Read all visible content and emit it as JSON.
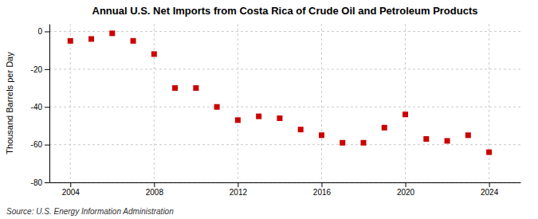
{
  "chart_data": {
    "type": "scatter",
    "title": "Annual U.S. Net Imports from Costa Rica of Crude Oil and Petroleum Products",
    "y_label": "Thousand Barrels per Day",
    "annotations": [
      "Source: U.S. Energy Information Administration"
    ],
    "x": [
      2004,
      2005,
      2006,
      2007,
      2008,
      2009,
      2010,
      2011,
      2012,
      2013,
      2014,
      2015,
      2016,
      2017,
      2018,
      2019,
      2020,
      2021,
      2022,
      2023,
      2024
    ],
    "values": [
      -5,
      -4,
      -1,
      -5,
      -12,
      -30,
      -30,
      -40,
      -47,
      -45,
      -46,
      -52,
      -55,
      -59,
      -59,
      -51,
      -44,
      -57,
      -58,
      -55,
      -64
    ],
    "color": "#cc0000",
    "marker": "square",
    "xlim": [
      2003.0,
      2025.5
    ],
    "ylim": [
      -80,
      4
    ],
    "xticks": [
      2004,
      2008,
      2012,
      2016,
      2020,
      2024
    ],
    "yticks": [
      0,
      -20,
      -40,
      -60,
      -80
    ],
    "grid": true
  }
}
